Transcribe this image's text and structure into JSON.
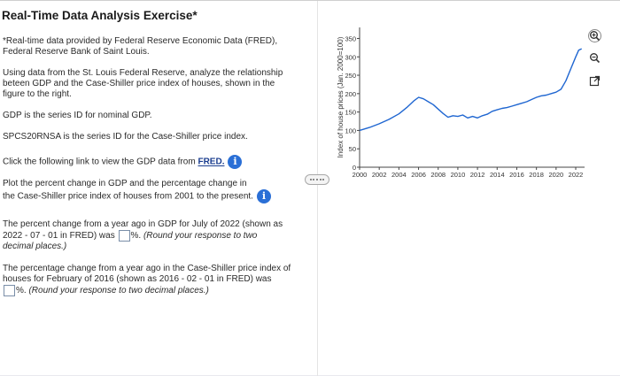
{
  "exercise": {
    "title": "Real-Time Data Analysis Exercise*",
    "footnote_line1": "*Real-time data provided by Federal Reserve Economic Data (FRED),",
    "footnote_line2": "Federal Reserve Bank of Saint Louis.",
    "intro_line1": "Using data from the St. Louis Federal Reserve, analyze the relationship",
    "intro_line2": "beteen GDP and the Case-Shiller price index of houses, shown in the",
    "intro_line3": "figure to the right.",
    "gdp_id_text": "GDP is the series ID for nominal GDP.",
    "cs_id_text": "SPCS20RNSA is the series ID for the Case-Shiller price index.",
    "link_prefix": "Click the following link to view the GDP data from ",
    "link_label": "FRED.",
    "plot_line1": "Plot the percent change in GDP and the percentage change in",
    "plot_line2": "the Case-Shiller price index of houses from 2001 to the present.",
    "info_glyph": "i",
    "q1_line1": "The percent change from a year ago in GDP for July of 2022 (shown as",
    "q1_line2_a": "2022 - 07 - 01 in FRED) was ",
    "q1_line2_b": "%. ",
    "q1_line2_c": "(Round your response to two",
    "q1_line3": "decimal places.)",
    "q1_value": "",
    "q2_line1": "The percentage change from a year ago in the Case-Shiller price index of",
    "q2_line2": "houses for February of 2016 (shown as 2016 - 02 - 01 in FRED) was",
    "q2_line3_a": "%. ",
    "q2_line3_b": "(Round your response to two decimal places.)",
    "q2_value": ""
  },
  "tools": {
    "zoom_in_icon": "zoom-in",
    "zoom_out_icon": "zoom-out",
    "popout_icon": "external-link"
  },
  "chart_data": {
    "type": "line",
    "title": "",
    "ylabel": "Index of house prices (Jan. 2000=100)",
    "xlabel": "",
    "ylim": [
      0,
      380
    ],
    "xlim": [
      2000,
      2022.9
    ],
    "yticks": [
      0,
      50,
      100,
      150,
      200,
      250,
      300,
      350
    ],
    "xticks": [
      2000,
      2002,
      2004,
      2006,
      2008,
      2010,
      2012,
      2014,
      2016,
      2018,
      2020,
      2022
    ],
    "line_color": "#1f66d1",
    "grid": false,
    "series": [
      {
        "x": [
          2000.0,
          2001.0,
          2002.0,
          2003.0,
          2004.0,
          2004.8,
          2005.5,
          2006.0,
          2006.5,
          2007.0,
          2007.5,
          2008.0,
          2008.5,
          2009.0,
          2009.5,
          2010.0,
          2010.5,
          2011.0,
          2011.5,
          2012.0,
          2012.5,
          2013.0,
          2013.5,
          2014.0,
          2014.5,
          2015.0,
          2015.5,
          2016.0,
          2016.5,
          2017.0,
          2017.5,
          2018.0,
          2018.5,
          2019.0,
          2019.5,
          2020.0,
          2020.5,
          2021.0,
          2021.5,
          2022.0,
          2022.3,
          2022.6
        ],
        "y": [
          100,
          108,
          118,
          130,
          145,
          162,
          180,
          190,
          186,
          178,
          170,
          158,
          146,
          136,
          140,
          138,
          142,
          134,
          138,
          134,
          140,
          144,
          152,
          156,
          160,
          162,
          166,
          170,
          174,
          178,
          184,
          190,
          194,
          196,
          200,
          204,
          212,
          235,
          268,
          300,
          318,
          322
        ]
      }
    ]
  }
}
